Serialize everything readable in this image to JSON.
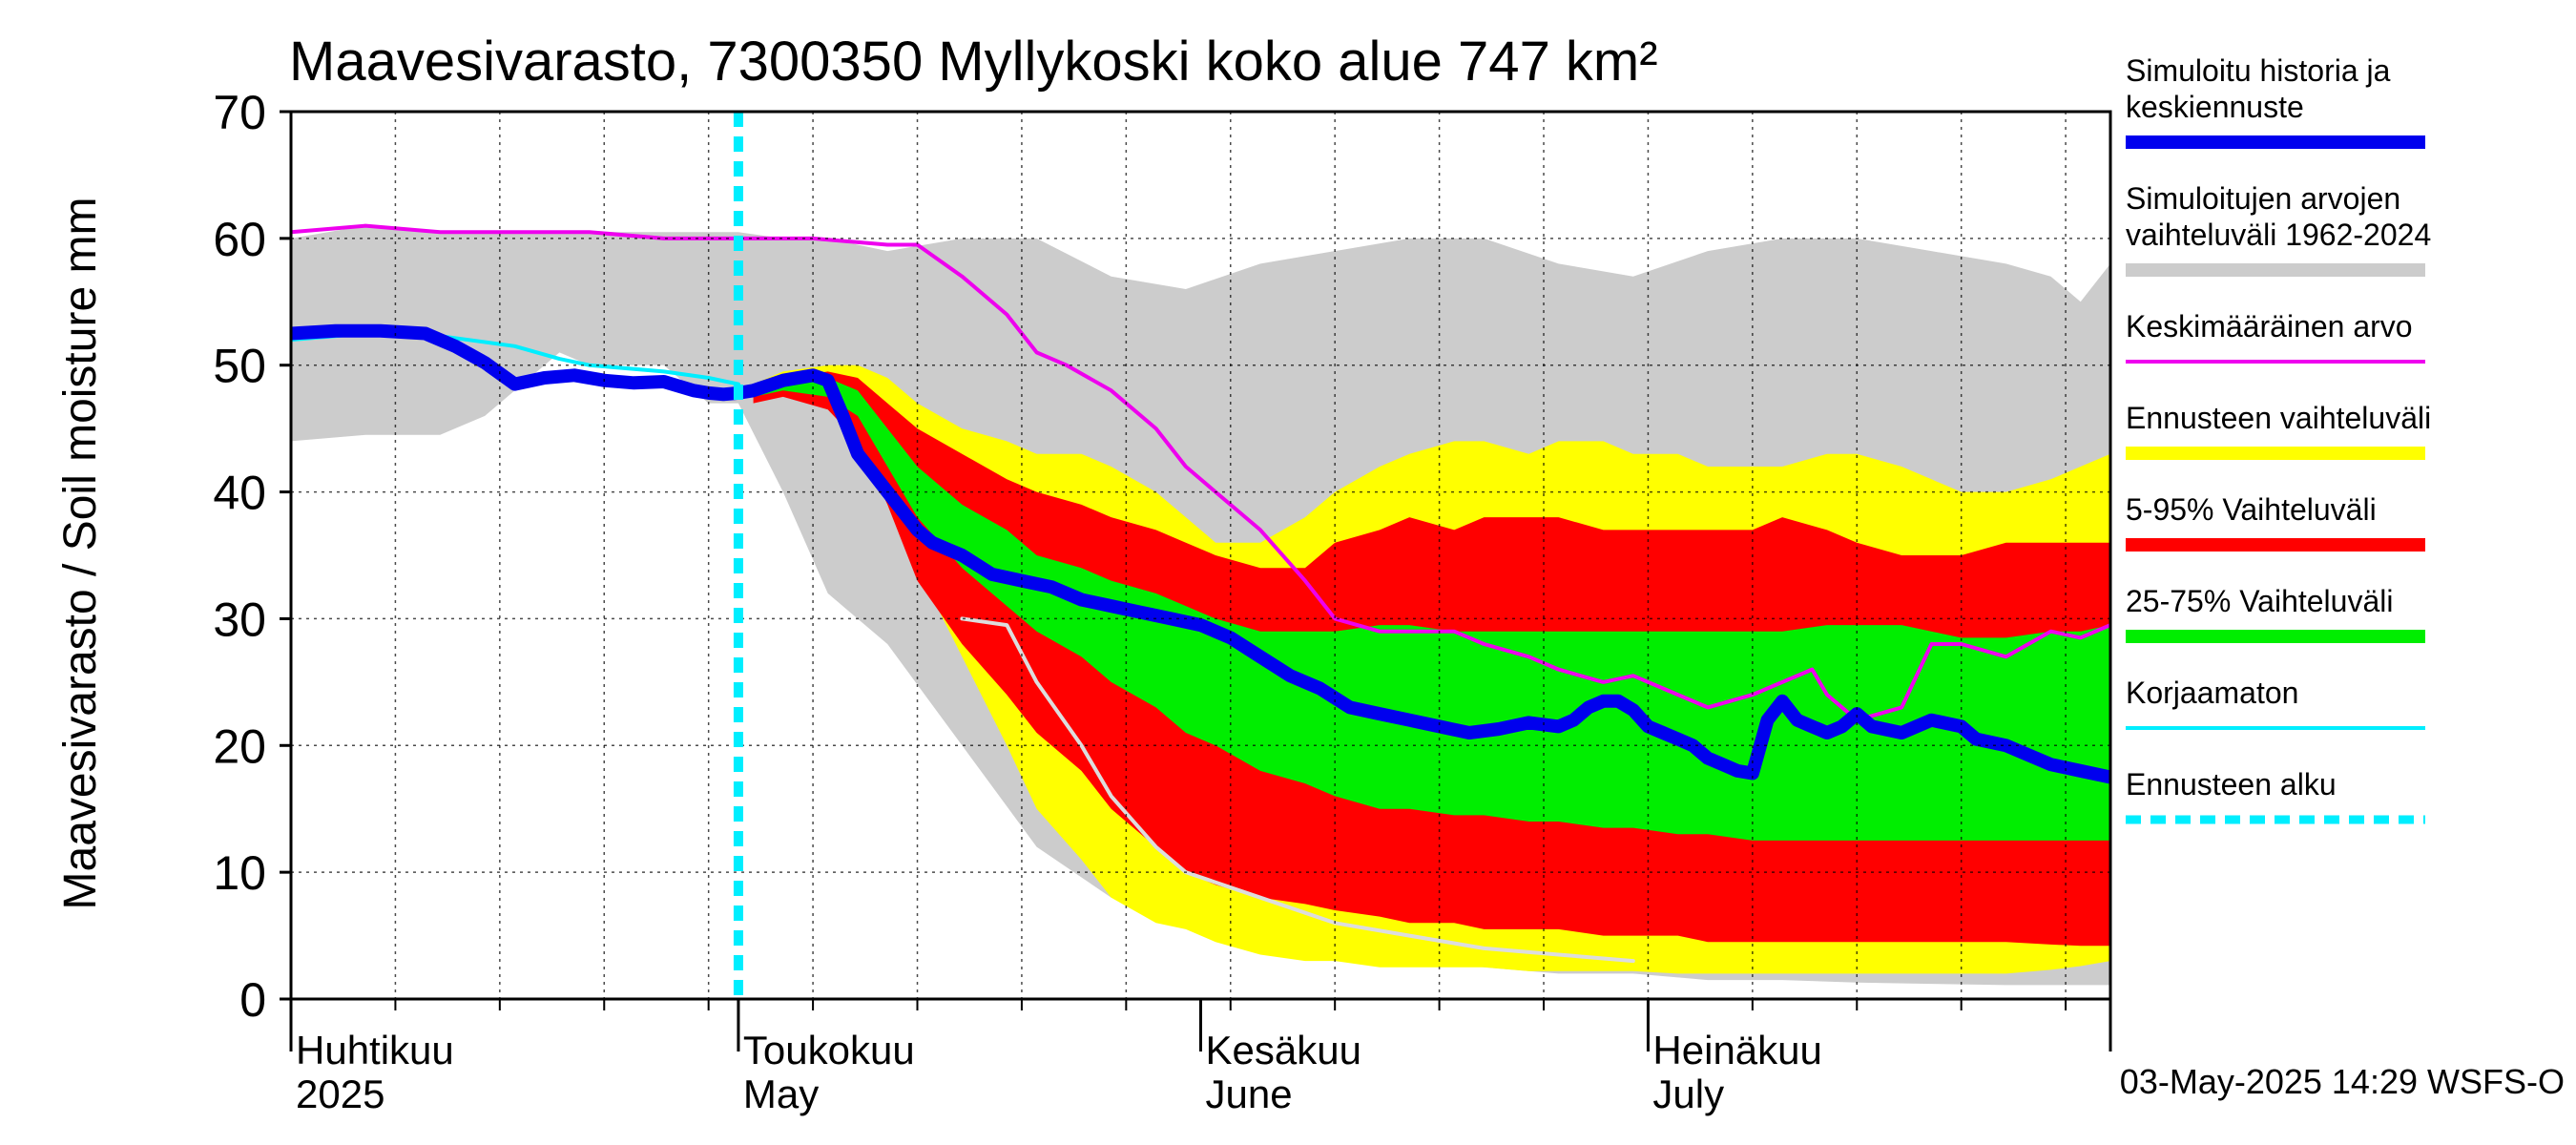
{
  "chart_data": {
    "type": "area",
    "title": "Maavesivarasto, 7300350 Myllykoski koko alue 747 km²",
    "ylabel": "Maavesivarasto / Soil moisture   mm",
    "xlabel": "",
    "ylim": [
      0,
      70
    ],
    "xlim": [
      0,
      122
    ],
    "yticks": [
      0,
      10,
      20,
      30,
      40,
      50,
      60,
      70
    ],
    "grid": true,
    "legend_position": "right",
    "forecast_start_day": 30,
    "x_unit": "days since 1 April 2025",
    "month_ticks": [
      0,
      30,
      61,
      91,
      122
    ],
    "month_labels": [
      {
        "day": 0,
        "fi": "Huhtikuu",
        "en": "2025"
      },
      {
        "day": 30,
        "fi": "Toukokuu",
        "en": "May"
      },
      {
        "day": 61,
        "fi": "Kesäkuu",
        "en": "June"
      },
      {
        "day": 91,
        "fi": "Heinäkuu",
        "en": "July"
      }
    ],
    "timestamp": "03-May-2025 14:29 WSFS-O",
    "legend": [
      {
        "label": "Simuloitu historia ja keskiennuste",
        "color": "#0000ee",
        "style": "thick"
      },
      {
        "label": "Simuloitujen arvojen vaihteluväli 1962-2024",
        "color": "#cccccc",
        "style": "band"
      },
      {
        "label": "Keskimääräinen arvo",
        "color": "#ee00ee",
        "style": "line"
      },
      {
        "label": "Ennusteen vaihteluväli",
        "color": "#ffff00",
        "style": "band"
      },
      {
        "label": "5-95% Vaihteluväli",
        "color": "#ff0000",
        "style": "band"
      },
      {
        "label": "25-75% Vaihteluväli",
        "color": "#00ee00",
        "style": "band"
      },
      {
        "label": "Korjaamaton",
        "color": "#00eeff",
        "style": "line"
      },
      {
        "label": "Ennusteen alku",
        "color": "#00eeff",
        "style": "dashed"
      }
    ],
    "series": [
      {
        "name": "Simuloitujen arvojen vaihteluväli 1962-2024",
        "kind": "band",
        "color": "#cccccc",
        "x": [
          0,
          5,
          10,
          13,
          15,
          18,
          20,
          25,
          28,
          30,
          33,
          36,
          40,
          45,
          50,
          55,
          60,
          65,
          70,
          75,
          80,
          85,
          90,
          95,
          100,
          105,
          110,
          115,
          118,
          120,
          122
        ],
        "lower": [
          44,
          44.5,
          44.5,
          46,
          48,
          51,
          50,
          50,
          47,
          47,
          40,
          32,
          28,
          20,
          12,
          8,
          7,
          5,
          4,
          3,
          2.5,
          2,
          2,
          1.5,
          1.5,
          1.3,
          1.2,
          1.1,
          1.1,
          1.1,
          1.1
        ],
        "upper": [
          60,
          61,
          60.5,
          60.5,
          60.5,
          60.5,
          60.5,
          60.5,
          60.5,
          60.5,
          60,
          60,
          59,
          60,
          60,
          57,
          56,
          58,
          59,
          60,
          60,
          58,
          57,
          59,
          60,
          60,
          59,
          58,
          57,
          55,
          58
        ]
      },
      {
        "name": "Ennusteen vaihteluväli",
        "kind": "band",
        "color": "#ffff00",
        "x": [
          31,
          33,
          36,
          38,
          40,
          42,
          45,
          48,
          50,
          53,
          55,
          58,
          60,
          62,
          65,
          68,
          70,
          73,
          75,
          78,
          80,
          83,
          85,
          88,
          90,
          93,
          95,
          98,
          100,
          103,
          105,
          108,
          110,
          112,
          115,
          118,
          120,
          122
        ],
        "lower": [
          47.5,
          48,
          47,
          45,
          40,
          34,
          27,
          20,
          15,
          11,
          8,
          6,
          5.5,
          4.5,
          3.5,
          3,
          3,
          2.5,
          2.5,
          2.5,
          2.5,
          2.2,
          2.2,
          2.2,
          2.2,
          2,
          2,
          2,
          2,
          2,
          2,
          2,
          2,
          2,
          2,
          2.3,
          2.6,
          3
        ],
        "upper": [
          48.5,
          49.5,
          50,
          50,
          49,
          47,
          45,
          44,
          43,
          43,
          42,
          40,
          38,
          36,
          36,
          38,
          40,
          42,
          43,
          44,
          44,
          43,
          44,
          44,
          43,
          43,
          42,
          42,
          42,
          43,
          43,
          42,
          41,
          40,
          40,
          41,
          42,
          43
        ]
      },
      {
        "name": "5-95% Vaihteluväli",
        "kind": "band",
        "color": "#ff0000",
        "x": [
          31,
          33,
          36,
          38,
          40,
          42,
          45,
          48,
          50,
          53,
          55,
          58,
          60,
          62,
          65,
          68,
          70,
          73,
          75,
          78,
          80,
          83,
          85,
          88,
          90,
          93,
          95,
          98,
          100,
          103,
          105,
          108,
          110,
          112,
          115,
          118,
          120,
          122
        ],
        "lower": [
          47,
          47.5,
          46.5,
          44,
          39,
          33,
          28,
          24,
          21,
          18,
          15,
          12,
          10,
          9,
          8,
          7.5,
          7,
          6.5,
          6,
          6,
          5.5,
          5.5,
          5.5,
          5,
          5,
          5,
          4.5,
          4.5,
          4.5,
          4.5,
          4.5,
          4.5,
          4.5,
          4.5,
          4.5,
          4.3,
          4.2,
          4.2
        ],
        "upper": [
          48,
          49,
          49.5,
          49,
          47,
          45,
          43,
          41,
          40,
          39,
          38,
          37,
          36,
          35,
          34,
          34,
          36,
          37,
          38,
          37,
          38,
          38,
          38,
          37,
          37,
          37,
          37,
          37,
          38,
          37,
          36,
          35,
          35,
          35,
          36,
          36,
          36,
          36
        ]
      },
      {
        "name": "25-75% Vaihteluväli",
        "kind": "band",
        "color": "#00ee00",
        "x": [
          31,
          33,
          36,
          38,
          40,
          42,
          45,
          48,
          50,
          53,
          55,
          58,
          60,
          62,
          65,
          68,
          70,
          73,
          75,
          78,
          80,
          83,
          85,
          88,
          90,
          93,
          95,
          98,
          100,
          103,
          105,
          108,
          110,
          112,
          115,
          118,
          120,
          122
        ],
        "lower": [
          47.5,
          48,
          47.5,
          46,
          42,
          38,
          34,
          31,
          29,
          27,
          25,
          23,
          21,
          20,
          18,
          17,
          16,
          15,
          15,
          14.5,
          14.5,
          14,
          14,
          13.5,
          13.5,
          13,
          13,
          12.5,
          12.5,
          12.5,
          12.5,
          12.5,
          12.5,
          12.5,
          12.5,
          12.5,
          12.5,
          12.5
        ],
        "upper": [
          48.5,
          49,
          49,
          48,
          45,
          42,
          39,
          37,
          35,
          34,
          33,
          32,
          31,
          30,
          29,
          29,
          29,
          29.5,
          29.5,
          29,
          29,
          29,
          29,
          29,
          29,
          29,
          29,
          29,
          29,
          29.5,
          29.5,
          29.5,
          29,
          28.5,
          28.5,
          29,
          29,
          29.5
        ]
      },
      {
        "name": "Keskimääräinen arvo",
        "kind": "line",
        "color": "#ee00ee",
        "x": [
          0,
          5,
          10,
          15,
          20,
          25,
          30,
          35,
          40,
          42,
          45,
          48,
          50,
          52,
          55,
          58,
          60,
          62,
          65,
          68,
          70,
          73,
          75,
          78,
          80,
          83,
          85,
          88,
          90,
          93,
          95,
          98,
          100,
          102,
          103,
          105,
          108,
          110,
          112,
          115,
          118,
          120,
          122
        ],
        "y": [
          60.5,
          61,
          60.5,
          60.5,
          60.5,
          60,
          60,
          60,
          59.5,
          59.5,
          57,
          54,
          51,
          50,
          48,
          45,
          42,
          40,
          37,
          33,
          30,
          29,
          29,
          29,
          28,
          27,
          26,
          25,
          25.5,
          24,
          23,
          24,
          25,
          26,
          24,
          22,
          23,
          28,
          28,
          27,
          29,
          28.5,
          29.5
        ]
      },
      {
        "name": "Korjaamaton",
        "kind": "line",
        "color": "#00eeff",
        "x": [
          0,
          5,
          10,
          15,
          18,
          20,
          25,
          28,
          30
        ],
        "y": [
          52,
          52.5,
          52.3,
          51.5,
          50.5,
          50,
          49.5,
          49,
          48.5
        ]
      },
      {
        "name": "Korjaamaton (ennuste)",
        "kind": "line",
        "color": "#dddddd",
        "x": [
          45,
          48,
          50,
          53,
          55,
          58,
          60,
          65,
          70,
          75,
          80,
          85,
          90
        ],
        "y": [
          30,
          29.5,
          25,
          20,
          16,
          12,
          10,
          8,
          6,
          5,
          4,
          3.5,
          3
        ]
      },
      {
        "name": "Simuloitu historia ja keskiennuste",
        "kind": "thick",
        "color": "#0000ee",
        "x": [
          0,
          3,
          6,
          9,
          11,
          13,
          15,
          17,
          19,
          21,
          23,
          25,
          27,
          28,
          29,
          30,
          31,
          33,
          35,
          36,
          37,
          38,
          39,
          40,
          41,
          42,
          43,
          44,
          45,
          47,
          49,
          51,
          53,
          55,
          57,
          59,
          61,
          63,
          65,
          67,
          69,
          71,
          73,
          75,
          77,
          79,
          81,
          83,
          85,
          86,
          87,
          88,
          89,
          90,
          91,
          92,
          93,
          94,
          95,
          96,
          97,
          98,
          99,
          100,
          101,
          102,
          103,
          104,
          105,
          106,
          108,
          110,
          112,
          113,
          115,
          116,
          118,
          120,
          122
        ],
        "y": [
          52.5,
          52.7,
          52.7,
          52.5,
          51.5,
          50.2,
          48.5,
          49,
          49.2,
          48.8,
          48.6,
          48.7,
          48,
          47.8,
          47.7,
          47.8,
          48,
          48.8,
          49.2,
          48.8,
          46,
          43,
          41.5,
          40,
          38.5,
          37,
          36,
          35.5,
          35,
          33.5,
          33,
          32.5,
          31.5,
          31,
          30.5,
          30,
          29.5,
          28.5,
          27,
          25.5,
          24.5,
          23,
          22.5,
          22,
          21.5,
          21,
          21.3,
          21.8,
          21.5,
          22,
          23,
          23.5,
          23.5,
          22.8,
          21.5,
          21,
          20.5,
          20,
          19,
          18.5,
          18,
          17.8,
          22,
          23.5,
          22,
          21.5,
          21,
          21.5,
          22.5,
          21.5,
          21,
          22,
          21.5,
          20.5,
          20,
          19.5,
          18.5,
          18,
          17.5
        ]
      }
    ]
  }
}
